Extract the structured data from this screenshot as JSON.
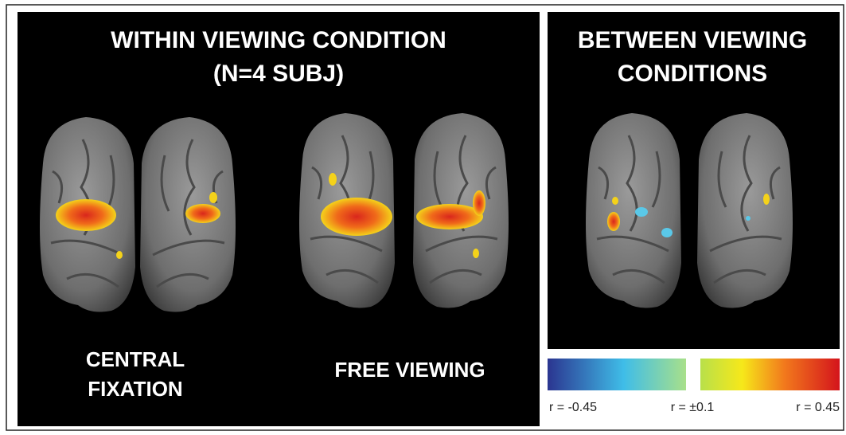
{
  "left_panel": {
    "title_lines": [
      "WITHIN VIEWING CONDITION",
      "(N=4 SUBJ)"
    ],
    "central_label": [
      "CENTRAL",
      "FIXATION"
    ],
    "free_label": "FREE VIEWING"
  },
  "right_panel": {
    "title_lines": [
      "BETWEEN VIEWING",
      "CONDITIONS"
    ]
  },
  "colorbar": {
    "labels": [
      "r = -0.45",
      "r = ±0.1",
      "r = 0.45"
    ]
  }
}
